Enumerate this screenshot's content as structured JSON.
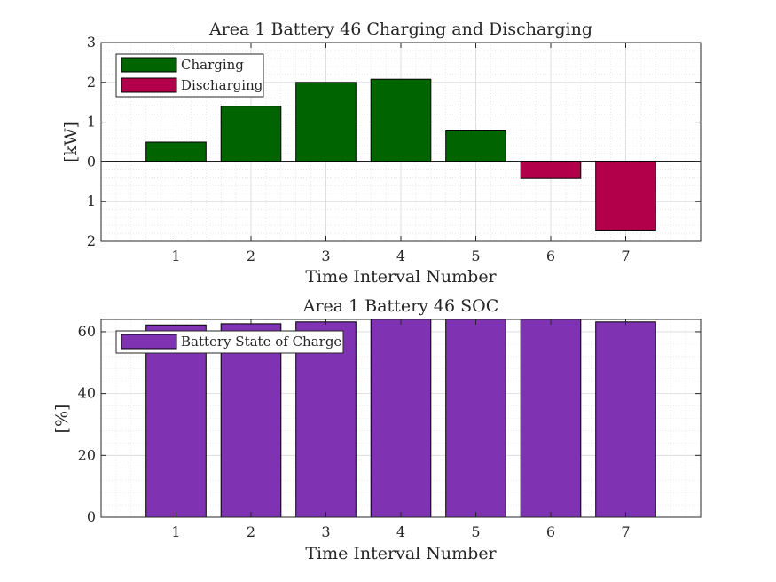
{
  "chart_data": [
    {
      "type": "bar",
      "title": "Area 1 Battery 46 Charging and Discharging",
      "xlabel": "Time Interval Number",
      "ylabel": "[kW]",
      "categories": [
        "1",
        "2",
        "3",
        "4",
        "5",
        "6",
        "7"
      ],
      "xlim": [
        0,
        8
      ],
      "ylim": [
        -2,
        3
      ],
      "yticks": [
        -2,
        -1,
        0,
        1,
        2,
        3
      ],
      "ytick_labels": [
        "2",
        "1",
        "0",
        "1",
        "2",
        "3"
      ],
      "zero_line": true,
      "series": [
        {
          "name": "Charging",
          "color": "#006400",
          "values": [
            0.5,
            1.4,
            2.0,
            2.08,
            0.78,
            0,
            0
          ]
        },
        {
          "name": "Discharging",
          "color": "#b3004a",
          "values": [
            0,
            0,
            0,
            0,
            0,
            -0.42,
            -1.72
          ]
        }
      ],
      "legend": "top-left",
      "grid": true,
      "minor_grid": true
    },
    {
      "type": "bar",
      "title": "Area 1 Battery 46 SOC",
      "xlabel": "Time Interval Number",
      "ylabel": "[%]",
      "categories": [
        "1",
        "2",
        "3",
        "4",
        "5",
        "6",
        "7"
      ],
      "xlim": [
        0,
        8
      ],
      "ylim": [
        0,
        64
      ],
      "yticks": [
        0,
        20,
        40,
        60
      ],
      "ytick_labels": [
        "0",
        "20",
        "40",
        "60"
      ],
      "series": [
        {
          "name": "Battery State of Charge",
          "color": "#7f32b2",
          "values": [
            62.2,
            62.6,
            63.2,
            64.0,
            64.0,
            64.0,
            63.2
          ]
        }
      ],
      "legend": "top-left",
      "grid": true,
      "minor_grid": true
    }
  ]
}
